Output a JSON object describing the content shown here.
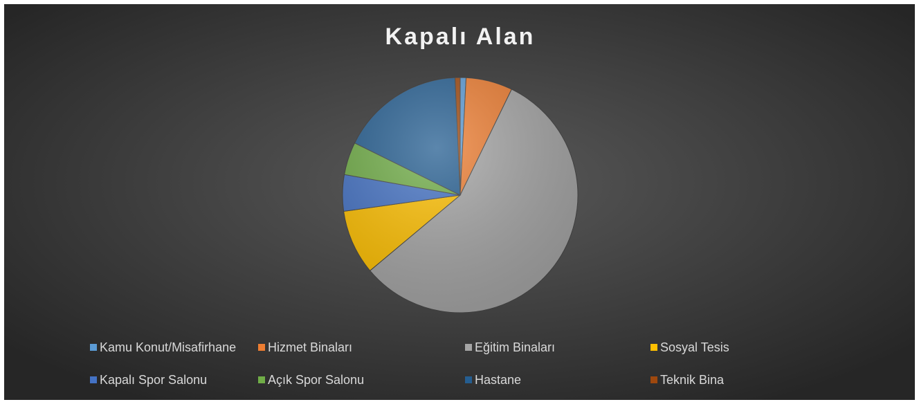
{
  "chart_data": {
    "type": "pie",
    "title": "Kapalı Alan",
    "categories": [
      "Kamu Konut/Misafirhane",
      "Hizmet Binaları",
      "Eğitim Binaları",
      "Sosyal Tesis",
      "Kapalı Spor Salonu",
      "Açık Spor Salonu",
      "Hastane",
      "Teknik Bina"
    ],
    "values": [
      0.8,
      6.4,
      56.7,
      8.9,
      5,
      4.5,
      17,
      0.7
    ],
    "colors": [
      "#5b9bd5",
      "#ed7d31",
      "#a5a5a5",
      "#ffc000",
      "#4472c4",
      "#70ad47",
      "#255e91",
      "#9e480e"
    ]
  }
}
